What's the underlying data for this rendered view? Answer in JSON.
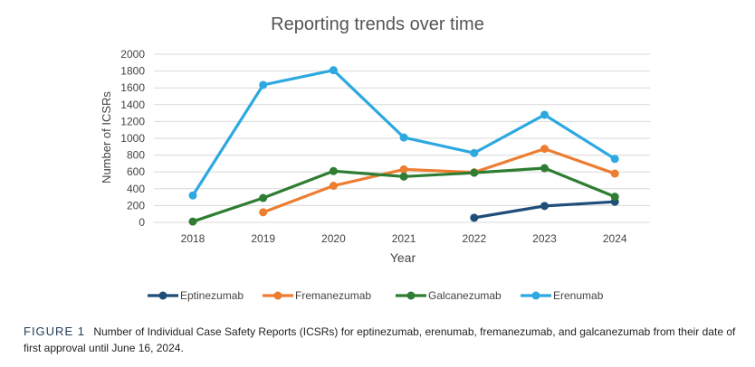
{
  "chart_data": {
    "type": "line",
    "title": "Reporting trends over time",
    "xlabel": "Year",
    "ylabel": "Number of ICSRs",
    "categories": [
      "2018",
      "2019",
      "2020",
      "2021",
      "2022",
      "2023",
      "2024"
    ],
    "yticks": [
      0,
      200,
      400,
      600,
      800,
      1000,
      1200,
      1400,
      1600,
      1800,
      2000
    ],
    "ylim": [
      0,
      2000
    ],
    "grid": true,
    "legend_position": "bottom",
    "series": [
      {
        "name": "Eptinezumab",
        "color": "#1f4e79",
        "values": [
          null,
          null,
          null,
          null,
          55,
          195,
          245
        ]
      },
      {
        "name": "Fremanezumab",
        "color": "#ed7d31",
        "values": [
          null,
          120,
          435,
          630,
          595,
          875,
          580
        ]
      },
      {
        "name": "Galcanezumab",
        "color": "#2e7d32",
        "values": [
          10,
          290,
          610,
          545,
          590,
          645,
          305
        ]
      },
      {
        "name": "Erenumab",
        "color": "#2da8e0",
        "values": [
          320,
          1635,
          1810,
          1010,
          825,
          1280,
          755
        ]
      }
    ]
  },
  "caption": {
    "label": "FIGURE 1",
    "text": "Number of Individual Case Safety Reports (ICSRs) for eptinezumab, erenumab, fremanezumab, and galcanezumab from their date of first approval until June 16, 2024."
  }
}
